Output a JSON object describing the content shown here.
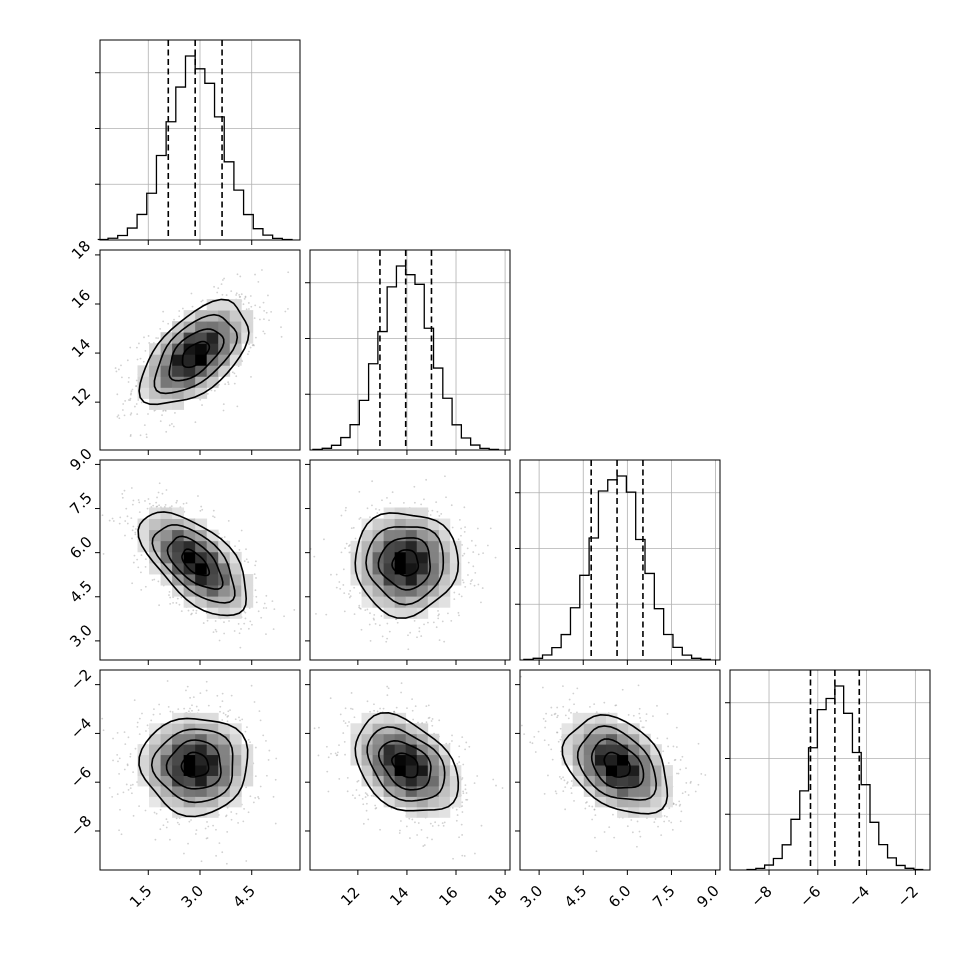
{
  "chart_data": {
    "type": "corner",
    "title": "",
    "parameters": [
      {
        "name": "",
        "range": [
          0.1,
          5.9
        ],
        "mean": 2.86,
        "sd": 0.78,
        "quantiles": [
          2.08,
          2.86,
          3.64
        ],
        "ticks": [
          1.5,
          3.0,
          4.5
        ],
        "tick_labels": [
          "1.5",
          "3.0",
          "4.5"
        ]
      },
      {
        "name": "",
        "range": [
          10.05,
          18.2
        ],
        "mean": 13.95,
        "sd": 1.05,
        "quantiles": [
          12.9,
          13.95,
          15.0
        ],
        "ticks": [
          12,
          14,
          16,
          18
        ],
        "tick_labels": [
          "12",
          "14",
          "16",
          "18"
        ]
      },
      {
        "name": "",
        "range": [
          2.35,
          9.15
        ],
        "mean": 5.65,
        "sd": 0.88,
        "quantiles": [
          4.77,
          5.65,
          6.53
        ],
        "ticks": [
          3.0,
          4.5,
          6.0,
          7.5,
          9.0
        ],
        "tick_labels": [
          "3.0",
          "4.5",
          "6.0",
          "7.5",
          "9.0"
        ]
      },
      {
        "name": "",
        "range": [
          -9.6,
          -1.4
        ],
        "mean": -5.3,
        "sd": 1.0,
        "quantiles": [
          -6.3,
          -5.3,
          -4.3
        ],
        "ticks": [
          -8,
          -6,
          -4,
          -2
        ],
        "tick_labels": [
          "−8",
          "−6",
          "−4",
          "−2"
        ]
      }
    ],
    "correlations": [
      {
        "pair": [
          0,
          1
        ],
        "rho": 0.55
      },
      {
        "pair": [
          0,
          2
        ],
        "rho": -0.6
      },
      {
        "pair": [
          1,
          2
        ],
        "rho": 0.0
      },
      {
        "pair": [
          0,
          3
        ],
        "rho": 0.0
      },
      {
        "pair": [
          1,
          3
        ],
        "rho": -0.35
      },
      {
        "pair": [
          2,
          3
        ],
        "rho": -0.35
      }
    ],
    "contour_levels_sigma": [
      0.5,
      1.0,
      1.5,
      2.0
    ],
    "histogram_bins": 20,
    "grid": true
  }
}
